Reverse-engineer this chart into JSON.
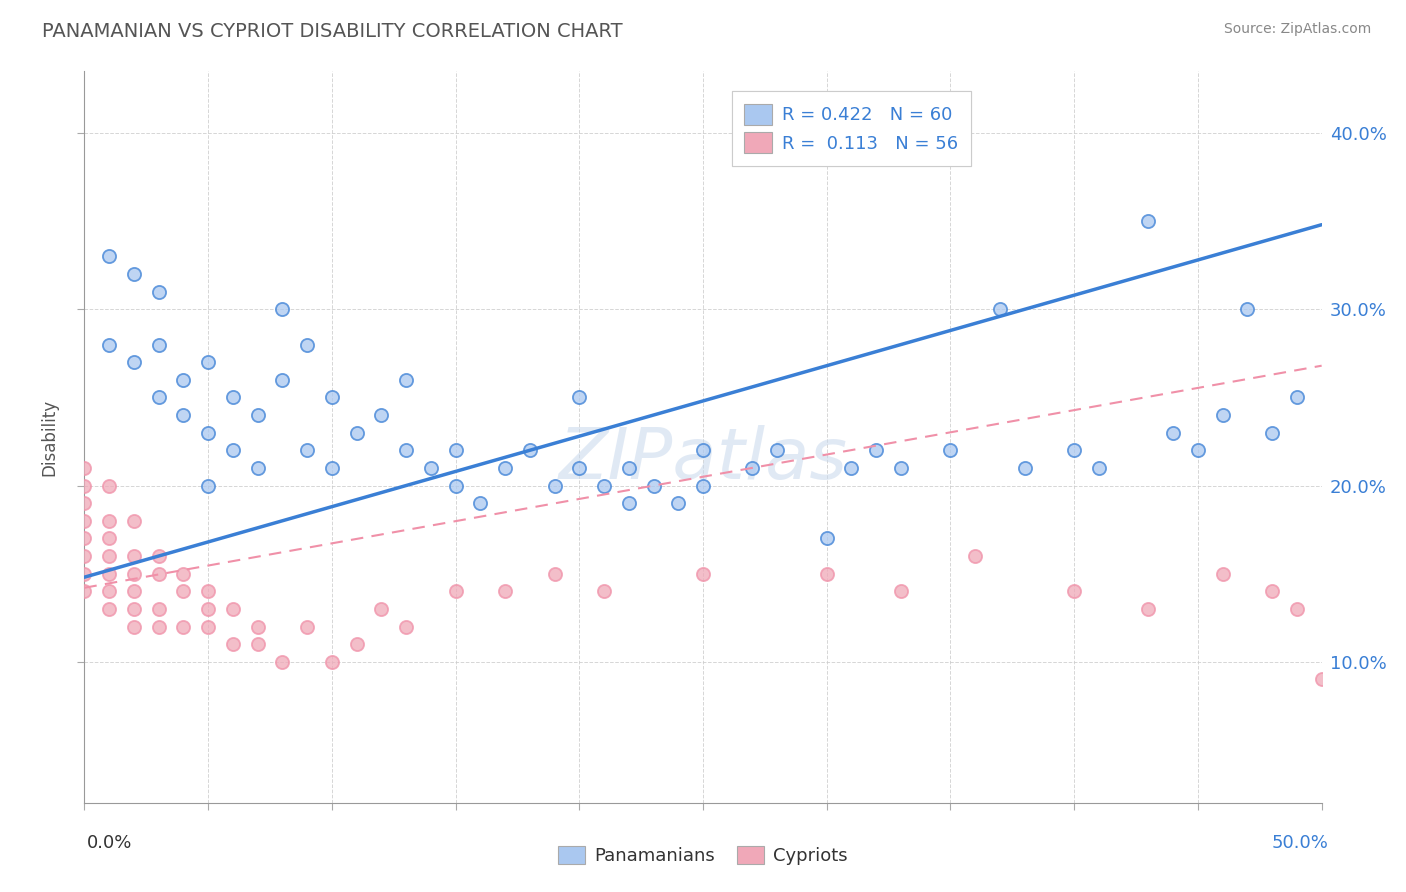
{
  "title": "PANAMANIAN VS CYPRIOT DISABILITY CORRELATION CHART",
  "source": "Source: ZipAtlas.com",
  "ylabel": "Disability",
  "ylabel_right_ticks": [
    "10.0%",
    "20.0%",
    "30.0%",
    "40.0%"
  ],
  "ylabel_right_tick_vals": [
    0.1,
    0.2,
    0.3,
    0.4
  ],
  "xmin": 0.0,
  "xmax": 0.5,
  "ymin": 0.02,
  "ymax": 0.435,
  "panamanian_color": "#aac8f0",
  "cypriot_color": "#f0a8b8",
  "panamanian_line_color": "#3a7fd5",
  "cypriot_line_color": "#f090a8",
  "watermark": "ZIPatlas",
  "pan_line_x0": 0.0,
  "pan_line_y0": 0.148,
  "pan_line_x1": 0.5,
  "pan_line_y1": 0.348,
  "cyp_line_x0": 0.0,
  "cyp_line_y0": 0.142,
  "cyp_line_x1": 0.5,
  "cyp_line_y1": 0.268,
  "panamanian_x": [
    0.01,
    0.01,
    0.02,
    0.02,
    0.03,
    0.03,
    0.03,
    0.04,
    0.04,
    0.05,
    0.05,
    0.05,
    0.06,
    0.06,
    0.07,
    0.07,
    0.08,
    0.08,
    0.09,
    0.09,
    0.1,
    0.1,
    0.11,
    0.12,
    0.13,
    0.13,
    0.14,
    0.15,
    0.15,
    0.16,
    0.17,
    0.18,
    0.19,
    0.2,
    0.2,
    0.21,
    0.22,
    0.22,
    0.23,
    0.24,
    0.25,
    0.25,
    0.27,
    0.28,
    0.3,
    0.31,
    0.32,
    0.33,
    0.35,
    0.37,
    0.38,
    0.4,
    0.41,
    0.43,
    0.44,
    0.45,
    0.46,
    0.47,
    0.48,
    0.49
  ],
  "panamanian_y": [
    0.28,
    0.33,
    0.27,
    0.32,
    0.25,
    0.28,
    0.31,
    0.24,
    0.26,
    0.2,
    0.23,
    0.27,
    0.22,
    0.25,
    0.21,
    0.24,
    0.26,
    0.3,
    0.22,
    0.28,
    0.25,
    0.21,
    0.23,
    0.24,
    0.22,
    0.26,
    0.21,
    0.2,
    0.22,
    0.19,
    0.21,
    0.22,
    0.2,
    0.21,
    0.25,
    0.2,
    0.21,
    0.19,
    0.2,
    0.19,
    0.2,
    0.22,
    0.21,
    0.22,
    0.17,
    0.21,
    0.22,
    0.21,
    0.22,
    0.3,
    0.21,
    0.22,
    0.21,
    0.35,
    0.23,
    0.22,
    0.24,
    0.3,
    0.23,
    0.25
  ],
  "cypriot_x": [
    0.0,
    0.0,
    0.0,
    0.0,
    0.0,
    0.0,
    0.0,
    0.0,
    0.01,
    0.01,
    0.01,
    0.01,
    0.01,
    0.01,
    0.01,
    0.02,
    0.02,
    0.02,
    0.02,
    0.02,
    0.02,
    0.03,
    0.03,
    0.03,
    0.03,
    0.04,
    0.04,
    0.04,
    0.05,
    0.05,
    0.05,
    0.06,
    0.06,
    0.07,
    0.07,
    0.08,
    0.09,
    0.1,
    0.11,
    0.12,
    0.13,
    0.15,
    0.17,
    0.19,
    0.21,
    0.25,
    0.3,
    0.33,
    0.36,
    0.4,
    0.43,
    0.46,
    0.48,
    0.49,
    0.5
  ],
  "cypriot_y": [
    0.14,
    0.15,
    0.16,
    0.17,
    0.19,
    0.2,
    0.21,
    0.18,
    0.13,
    0.14,
    0.15,
    0.16,
    0.17,
    0.18,
    0.2,
    0.12,
    0.13,
    0.14,
    0.15,
    0.16,
    0.18,
    0.12,
    0.13,
    0.15,
    0.16,
    0.12,
    0.14,
    0.15,
    0.12,
    0.13,
    0.14,
    0.11,
    0.13,
    0.11,
    0.12,
    0.1,
    0.12,
    0.1,
    0.11,
    0.13,
    0.12,
    0.14,
    0.14,
    0.15,
    0.14,
    0.15,
    0.15,
    0.14,
    0.16,
    0.14,
    0.13,
    0.15,
    0.14,
    0.13,
    0.09
  ]
}
